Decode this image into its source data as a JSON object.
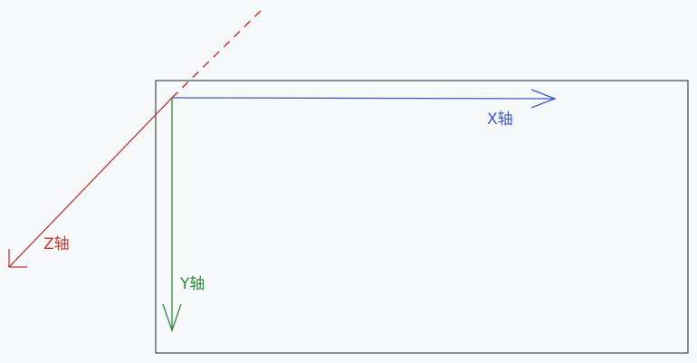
{
  "diagram": {
    "axes": {
      "x": {
        "label": "X轴",
        "color": "#3a5bc7"
      },
      "y": {
        "label": "Y轴",
        "color": "#2f8a3c"
      },
      "z": {
        "label": "Z轴",
        "color": "#c43a32"
      }
    },
    "screen_frame_color": "#222222"
  }
}
